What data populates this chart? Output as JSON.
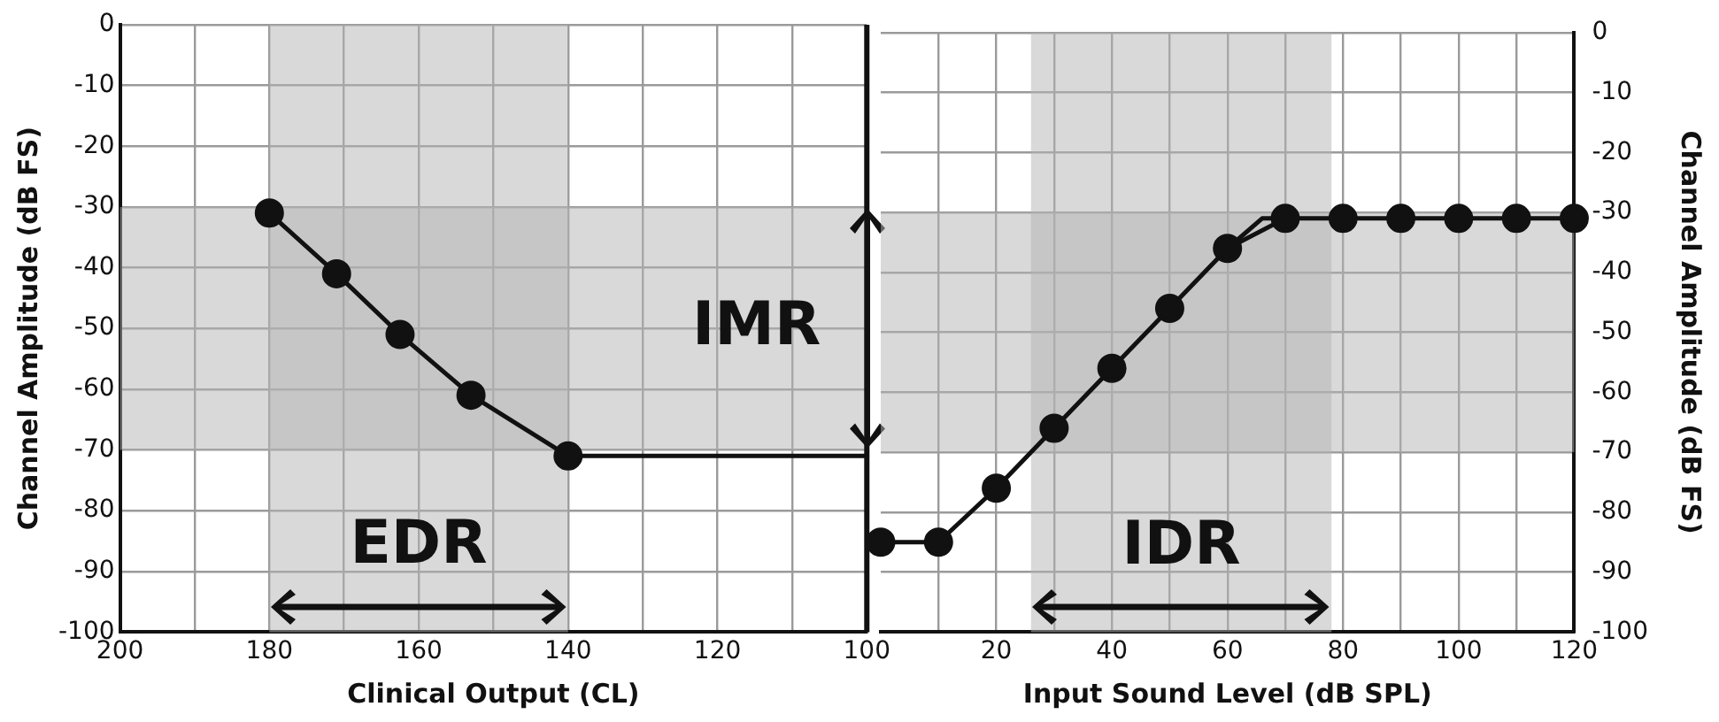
{
  "chart_data": [
    {
      "type": "line",
      "xlabel": "Clinical Output (CL)",
      "ylabel": "Channel Amplitude (dB FS)",
      "xlim": [
        200,
        100
      ],
      "xticks": [
        200,
        {
          "value": 190,
          "label": null
        },
        180,
        {
          "value": 170,
          "label": null
        },
        160,
        {
          "value": 150,
          "label": null
        },
        140,
        {
          "value": 130,
          "label": null
        },
        120,
        {
          "value": 110,
          "label": null
        },
        100
      ],
      "ylim": [
        -100,
        0
      ],
      "yticks": [
        0,
        -10,
        -20,
        -30,
        -40,
        -50,
        -60,
        -70,
        -80,
        -90,
        -100
      ],
      "grid": true,
      "legend": false,
      "marker": "circle",
      "series": [
        {
          "color": "#111111",
          "x": [
            180,
            171,
            162.5,
            153,
            140
          ],
          "values": [
            -31,
            -41,
            -51,
            -61,
            -71
          ]
        },
        {
          "color": "#111111",
          "x": [
            140,
            100
          ],
          "values": [
            -71,
            -71
          ],
          "marker": "none"
        }
      ],
      "bands": [
        {
          "axis": "x",
          "from": 180,
          "to": 140,
          "label": "EDR",
          "color": "#b4b4b4"
        },
        {
          "axis": "y",
          "from": -70,
          "to": -30,
          "label": "IMR",
          "color": "#b4b4b4"
        }
      ],
      "ref_lines": [
        {
          "axis": "x",
          "value": 100,
          "color": "#111111"
        }
      ]
    },
    {
      "type": "line",
      "xlabel": "Input Sound Level (dB SPL)",
      "y2label": "Channel Amplitude (dB FS)",
      "xlim": [
        0,
        120
      ],
      "xticks": [
        {
          "value": 10,
          "label": null
        },
        20,
        {
          "value": 30,
          "label": null
        },
        40,
        {
          "value": 50,
          "label": null
        },
        60,
        {
          "value": 70,
          "label": null
        },
        80,
        {
          "value": 90,
          "label": null
        },
        100,
        {
          "value": 110,
          "label": null
        },
        120
      ],
      "y2lim": [
        -100,
        0
      ],
      "y2ticks": [
        0,
        -10,
        -20,
        -30,
        -40,
        -50,
        -60,
        -70,
        -80,
        -90,
        -100
      ],
      "grid": true,
      "legend": false,
      "marker": "circle",
      "series": [
        {
          "color": "#111111",
          "axis": "y2",
          "x": [
            0,
            10,
            20,
            30,
            40,
            50,
            60,
            70,
            80,
            90,
            100,
            110,
            120
          ],
          "values": [
            -85,
            -85,
            -76,
            -66,
            -56,
            -46,
            -36,
            -31,
            -31,
            -31,
            -31,
            -31,
            -31
          ]
        },
        {
          "color": "#111111",
          "axis": "y2",
          "x": [
            60,
            66,
            70
          ],
          "values": [
            -36,
            -31,
            -31
          ],
          "marker": "none"
        }
      ],
      "bands": [
        {
          "axis": "x",
          "from": 26,
          "to": 78,
          "label": "IDR",
          "color": "#b4b4b4"
        },
        {
          "axis": "y2",
          "from": -70,
          "to": -30,
          "color": "#b4b4b4"
        }
      ]
    }
  ]
}
